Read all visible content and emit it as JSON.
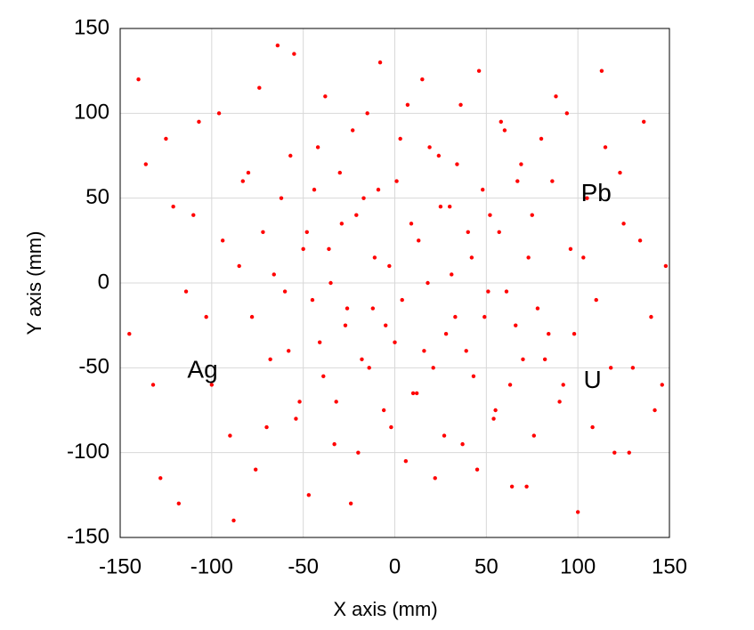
{
  "chart_data": {
    "type": "scatter",
    "x_label": "X axis (mm)",
    "y_label": "Y axis (mm)",
    "color": "#ff0000",
    "grid": true,
    "xlim": [
      -150,
      150
    ],
    "ylim": [
      -150,
      150
    ],
    "xticks": [
      -150,
      -100,
      -50,
      0,
      50,
      100,
      150
    ],
    "yticks": [
      -150,
      -100,
      -50,
      0,
      50,
      100,
      150
    ],
    "annotations": [
      {
        "text": "Pb",
        "x": 110,
        "y": 52
      },
      {
        "text": "U",
        "x": 108,
        "y": -58
      },
      {
        "text": "Ag",
        "x": -105,
        "y": -52
      }
    ],
    "x": [
      -140,
      -132,
      -125,
      -118,
      -110,
      -103,
      -96,
      -90,
      -85,
      -80,
      -76,
      -72,
      -68,
      -64,
      -60,
      -57,
      -54,
      -50,
      -47,
      -44,
      -41,
      -38,
      -35,
      -32,
      -29,
      -26,
      -23,
      -20,
      -17,
      -14,
      -11,
      -8,
      -5,
      -2,
      1,
      4,
      7,
      10,
      13,
      16,
      19,
      22,
      25,
      28,
      31,
      34,
      37,
      40,
      43,
      46,
      49,
      52,
      55,
      58,
      61,
      64,
      67,
      70,
      73,
      76,
      80,
      84,
      88,
      92,
      96,
      100,
      105,
      110,
      115,
      120,
      125,
      130,
      136,
      142,
      148,
      -145,
      -136,
      -128,
      -121,
      -114,
      -107,
      -100,
      -94,
      -88,
      -83,
      -78,
      -74,
      -70,
      -66,
      -62,
      -58,
      -55,
      -52,
      -48,
      -45,
      -42,
      -39,
      -36,
      -33,
      -30,
      -27,
      -24,
      -21,
      -18,
      -15,
      -12,
      -9,
      -6,
      -3,
      0,
      3,
      6,
      9,
      12,
      15,
      18,
      21,
      24,
      27,
      30,
      33,
      36,
      39,
      42,
      45,
      48,
      51,
      54,
      57,
      60,
      63,
      66,
      69,
      72,
      75,
      78,
      82,
      86,
      90,
      94,
      98,
      103,
      108,
      113,
      118,
      123,
      128,
      134,
      140,
      146
    ],
    "values": [
      120,
      -60,
      85,
      -130,
      40,
      -20,
      100,
      -90,
      10,
      65,
      -110,
      30,
      -45,
      140,
      -5,
      75,
      -80,
      20,
      -125,
      55,
      -35,
      110,
      0,
      -70,
      35,
      -15,
      90,
      -100,
      50,
      -50,
      15,
      130,
      -25,
      -85,
      60,
      -10,
      105,
      -65,
      25,
      -40,
      80,
      -115,
      45,
      -30,
      5,
      70,
      -95,
      30,
      -55,
      125,
      -20,
      40,
      -75,
      95,
      -5,
      -120,
      60,
      -45,
      15,
      -90,
      85,
      -30,
      110,
      -60,
      20,
      -135,
      50,
      -10,
      80,
      -100,
      35,
      -50,
      95,
      -75,
      10,
      -30,
      70,
      -115,
      45,
      -5,
      95,
      -60,
      25,
      -140,
      60,
      -20,
      115,
      -85,
      5,
      50,
      -40,
      135,
      -70,
      30,
      -10,
      80,
      -55,
      20,
      -95,
      65,
      -25,
      -130,
      40,
      -45,
      100,
      -15,
      55,
      -75,
      10,
      -35,
      85,
      -105,
      35,
      -65,
      120,
      0,
      -50,
      75,
      -90,
      45,
      -20,
      105,
      -40,
      15,
      -110,
      55,
      -5,
      -80,
      30,
      90,
      -60,
      -25,
      70,
      -120,
      40,
      -15,
      -45,
      60,
      -70,
      100,
      -30,
      15,
      -85,
      125,
      -50,
      65,
      -100,
      25,
      -20,
      -60
    ]
  }
}
